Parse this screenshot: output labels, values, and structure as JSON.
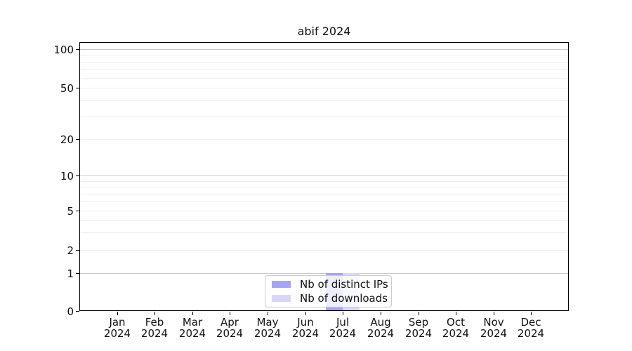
{
  "chart_data": {
    "type": "bar",
    "title": "abif 2024",
    "x_tick_labels": [
      {
        "month": "Jan",
        "year": "2024"
      },
      {
        "month": "Feb",
        "year": "2024"
      },
      {
        "month": "Mar",
        "year": "2024"
      },
      {
        "month": "Apr",
        "year": "2024"
      },
      {
        "month": "May",
        "year": "2024"
      },
      {
        "month": "Jun",
        "year": "2024"
      },
      {
        "month": "Jul",
        "year": "2024"
      },
      {
        "month": "Aug",
        "year": "2024"
      },
      {
        "month": "Sep",
        "year": "2024"
      },
      {
        "month": "Oct",
        "year": "2024"
      },
      {
        "month": "Nov",
        "year": "2024"
      },
      {
        "month": "Dec",
        "year": "2024"
      }
    ],
    "series": [
      {
        "name": "Nb of distinct IPs",
        "color": "#a5a5ef",
        "values": [
          0,
          0,
          0,
          0,
          0,
          0,
          1,
          0,
          0,
          0,
          0,
          0
        ]
      },
      {
        "name": "Nb of downloads",
        "color": "#d6d7f7",
        "values": [
          0,
          0,
          0,
          0,
          0,
          0,
          1,
          0,
          0,
          0,
          0,
          0
        ]
      }
    ],
    "y_axis": {
      "scale": "symlog",
      "range": [
        0,
        100
      ],
      "ticks": [
        0,
        1,
        2,
        5,
        10,
        20,
        50,
        100
      ],
      "minor_ticks": [
        2,
        3,
        4,
        5,
        6,
        7,
        8,
        9,
        20,
        30,
        40,
        50,
        60,
        70,
        80,
        90
      ],
      "major_grid_values": [
        1,
        10,
        100
      ]
    },
    "grid": {
      "orientation": "horizontal",
      "major_color": "#c9c9c9",
      "minor_color": "#ececec"
    },
    "legend": {
      "position": "lower center",
      "entries": [
        "Nb of distinct IPs",
        "Nb of downloads"
      ]
    },
    "colors": {
      "background": "#ffffff",
      "axis": "#000000",
      "text": "#111111"
    }
  }
}
